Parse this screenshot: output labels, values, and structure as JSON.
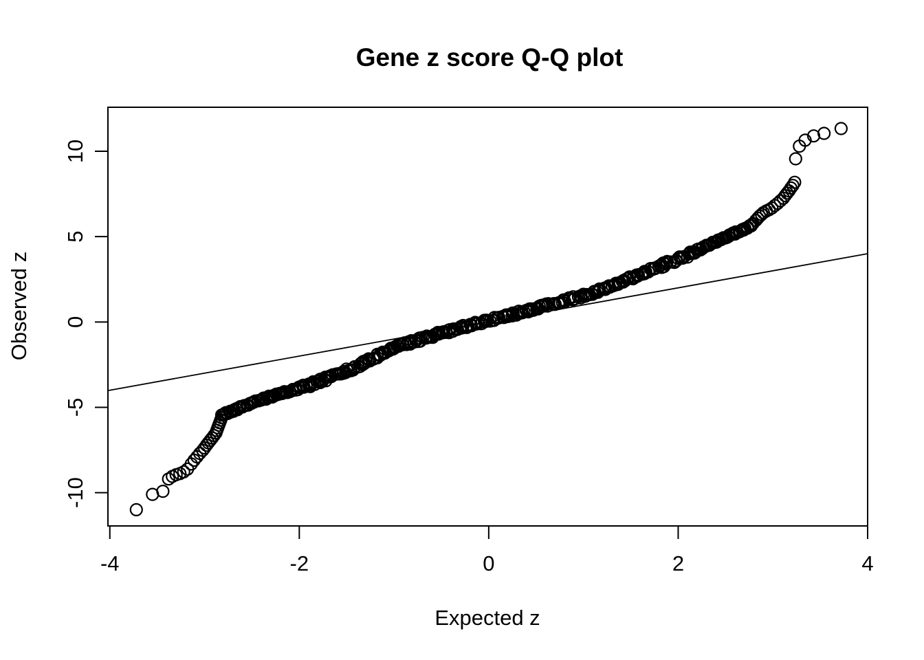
{
  "page": {
    "background_color": "#ffffff",
    "foreground_color": "#000000"
  },
  "chart_data": {
    "type": "scatter",
    "subtype": "qq-plot",
    "title": "Gene z score Q-Q plot",
    "xlabel": "Expected z",
    "ylabel": "Observed z",
    "x_ticks": [
      -4,
      -2,
      0,
      2,
      4
    ],
    "y_ticks": [
      -10,
      -5,
      0,
      5,
      10
    ],
    "xlim": [
      -4.02,
      4.0
    ],
    "ylim": [
      -11.95,
      12.58
    ],
    "grid": false,
    "legend": null,
    "marker": "open-circle",
    "marker_color": "#000000",
    "reference_line": {
      "slope": 1,
      "intercept": 0,
      "color": "#000000"
    },
    "dense_band_curve": [
      [
        -2.82,
        -5.45
      ],
      [
        -2.7,
        -5.2
      ],
      [
        -2.6,
        -4.95
      ],
      [
        -2.5,
        -4.75
      ],
      [
        -2.4,
        -4.55
      ],
      [
        -2.2,
        -4.2
      ],
      [
        -2.0,
        -3.9
      ],
      [
        -1.8,
        -3.5
      ],
      [
        -1.6,
        -3.1
      ],
      [
        -1.4,
        -2.65
      ],
      [
        -1.2,
        -2.1
      ],
      [
        -1.0,
        -1.5
      ],
      [
        -0.8,
        -1.15
      ],
      [
        -0.6,
        -0.82
      ],
      [
        -0.4,
        -0.5
      ],
      [
        -0.2,
        -0.18
      ],
      [
        0.0,
        0.1
      ],
      [
        0.2,
        0.38
      ],
      [
        0.4,
        0.66
      ],
      [
        0.6,
        0.95
      ],
      [
        0.8,
        1.25
      ],
      [
        1.0,
        1.55
      ],
      [
        1.2,
        1.9
      ],
      [
        1.4,
        2.35
      ],
      [
        1.6,
        2.8
      ],
      [
        1.8,
        3.25
      ],
      [
        2.0,
        3.65
      ],
      [
        2.2,
        4.2
      ],
      [
        2.4,
        4.7
      ],
      [
        2.6,
        5.2
      ],
      [
        2.7,
        5.45
      ],
      [
        2.8,
        5.8
      ]
    ],
    "left_tail_points": [
      [
        -3.72,
        -11.0
      ],
      [
        -3.55,
        -10.1
      ],
      [
        -3.44,
        -9.92
      ],
      [
        -3.38,
        -9.2
      ],
      [
        -3.34,
        -9.05
      ],
      [
        -3.3,
        -8.95
      ],
      [
        -3.26,
        -8.88
      ],
      [
        -3.22,
        -8.78
      ],
      [
        -3.18,
        -8.62
      ],
      [
        -3.14,
        -8.32
      ],
      [
        -3.11,
        -8.1
      ],
      [
        -3.08,
        -7.9
      ],
      [
        -3.05,
        -7.7
      ],
      [
        -3.02,
        -7.52
      ],
      [
        -3.0,
        -7.38
      ],
      [
        -2.98,
        -7.22
      ],
      [
        -2.96,
        -7.08
      ],
      [
        -2.94,
        -6.94
      ],
      [
        -2.92,
        -6.8
      ],
      [
        -2.9,
        -6.65
      ],
      [
        -2.88,
        -6.5
      ],
      [
        -2.87,
        -6.35
      ],
      [
        -2.86,
        -6.2
      ],
      [
        -2.85,
        -6.05
      ],
      [
        -2.84,
        -5.9
      ],
      [
        -2.83,
        -5.75
      ],
      [
        -2.82,
        -5.6
      ]
    ],
    "right_tail_points": [
      [
        2.82,
        5.95
      ],
      [
        2.84,
        6.08
      ],
      [
        2.86,
        6.2
      ],
      [
        2.88,
        6.3
      ],
      [
        2.9,
        6.4
      ],
      [
        2.93,
        6.5
      ],
      [
        2.96,
        6.58
      ],
      [
        2.99,
        6.68
      ],
      [
        3.02,
        6.82
      ],
      [
        3.05,
        6.95
      ],
      [
        3.08,
        7.1
      ],
      [
        3.11,
        7.25
      ],
      [
        3.13,
        7.4
      ],
      [
        3.15,
        7.55
      ],
      [
        3.17,
        7.68
      ],
      [
        3.19,
        7.85
      ],
      [
        3.21,
        8.0
      ],
      [
        3.23,
        8.18
      ],
      [
        3.24,
        9.56
      ],
      [
        3.28,
        10.3
      ],
      [
        3.34,
        10.65
      ],
      [
        3.43,
        10.9
      ],
      [
        3.54,
        11.05
      ],
      [
        3.72,
        11.33
      ]
    ]
  }
}
